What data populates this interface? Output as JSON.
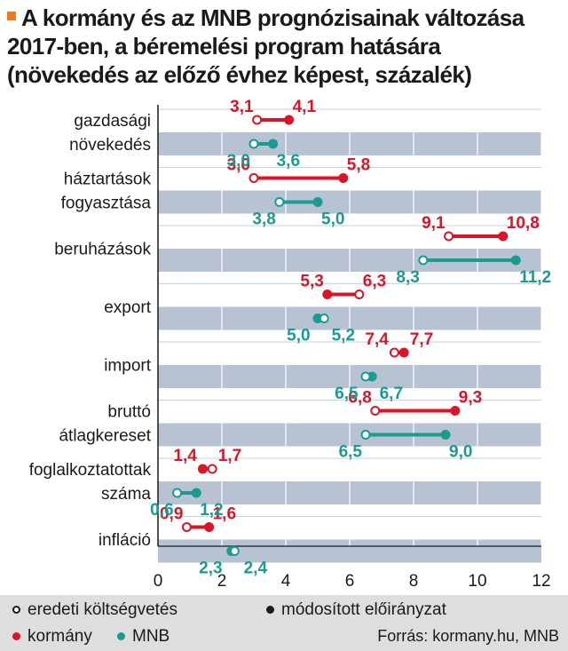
{
  "title_lines": [
    "A kormány és az MNB prognózisainak változása",
    "2017-ben, a béremelési program hatására",
    "(növekedés az előző évhez képest, százalék)"
  ],
  "colors": {
    "kormany": "#d9152a",
    "mnb": "#1b9a90",
    "band": "#b7c3d3",
    "accent": "#ee7a1e",
    "footer_bg": "#dedede"
  },
  "legend": {
    "original": "eredeti költségvetés",
    "modified": "módosított előirányzat",
    "kormany": "kormány",
    "mnb": "MNB"
  },
  "source": "Forrás: kormany.hu, MNB",
  "chart_data": {
    "type": "dumbbell",
    "xlim": [
      0,
      12
    ],
    "xticks": [
      0,
      2,
      4,
      6,
      8,
      10,
      12
    ],
    "categories": [
      [
        "gazdasági",
        "növekedés"
      ],
      [
        "háztartások",
        "fogyasztása"
      ],
      [
        "beruházások"
      ],
      [
        "export"
      ],
      [
        "import"
      ],
      [
        "bruttó",
        "átlagkereset"
      ],
      [
        "foglalkoztatottak",
        "száma"
      ],
      [
        "infláció"
      ]
    ],
    "series": [
      {
        "name": "kormány",
        "original": [
          3.1,
          3.0,
          9.1,
          6.3,
          7.4,
          6.8,
          1.7,
          0.9
        ],
        "original_labels": [
          "3,1",
          "3,0",
          "9,1",
          "6,3",
          "7,4",
          "6,8",
          "1,7",
          "0,9"
        ],
        "modified": [
          4.1,
          5.8,
          10.8,
          5.3,
          7.7,
          9.3,
          1.4,
          1.6
        ],
        "modified_labels": [
          "4,1",
          "5,8",
          "10,8",
          "5,3",
          "7,7",
          "9,3",
          "1,4",
          "1,6"
        ]
      },
      {
        "name": "MNB",
        "original": [
          3.0,
          3.8,
          8.3,
          5.2,
          6.5,
          6.5,
          0.6,
          2.4
        ],
        "original_labels": [
          "3,0",
          "3,8",
          "8,3",
          "5,2",
          "6,5",
          "6,5",
          "0,6",
          "2,4"
        ],
        "modified": [
          3.6,
          5.0,
          11.2,
          5.0,
          6.7,
          9.0,
          1.2,
          2.3
        ],
        "modified_labels": [
          "3,6",
          "5,0",
          "11,2",
          "5,0",
          "6,7",
          "9,0",
          "1,2",
          "2,3"
        ]
      }
    ]
  }
}
